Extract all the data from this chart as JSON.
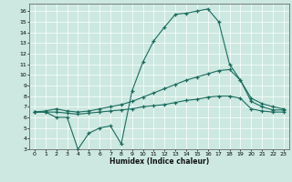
{
  "xlabel": "Humidex (Indice chaleur)",
  "background_color": "#cce8e0",
  "line_color": "#1a6b5e",
  "xlim": [
    -0.5,
    23.5
  ],
  "ylim": [
    3,
    16.7
  ],
  "xticks": [
    0,
    1,
    2,
    3,
    4,
    5,
    6,
    7,
    8,
    9,
    10,
    11,
    12,
    13,
    14,
    15,
    16,
    17,
    18,
    19,
    20,
    21,
    22,
    23
  ],
  "yticks": [
    3,
    4,
    5,
    6,
    7,
    8,
    9,
    10,
    11,
    12,
    13,
    14,
    15,
    16
  ],
  "series1_x": [
    0,
    1,
    2,
    3,
    4,
    5,
    6,
    7,
    8,
    9,
    10,
    11,
    12,
    13,
    14,
    15,
    16,
    17,
    18,
    19,
    20,
    21,
    22,
    23
  ],
  "series1_y": [
    6.5,
    6.5,
    6.0,
    6.0,
    3.0,
    4.5,
    5.0,
    5.2,
    3.5,
    8.5,
    11.2,
    13.2,
    14.5,
    15.7,
    15.8,
    16.0,
    16.2,
    15.0,
    11.0,
    9.5,
    7.5,
    7.0,
    6.7,
    6.7
  ],
  "series2_x": [
    0,
    1,
    2,
    3,
    4,
    5,
    6,
    7,
    8,
    9,
    10,
    11,
    12,
    13,
    14,
    15,
    16,
    17,
    18,
    19,
    20,
    21,
    22,
    23
  ],
  "series2_y": [
    6.5,
    6.6,
    6.8,
    6.6,
    6.5,
    6.6,
    6.8,
    7.0,
    7.2,
    7.5,
    7.9,
    8.3,
    8.7,
    9.1,
    9.5,
    9.8,
    10.1,
    10.4,
    10.5,
    9.5,
    7.8,
    7.3,
    7.0,
    6.8
  ],
  "series3_x": [
    0,
    1,
    2,
    3,
    4,
    5,
    6,
    7,
    8,
    9,
    10,
    11,
    12,
    13,
    14,
    15,
    16,
    17,
    18,
    19,
    20,
    21,
    22,
    23
  ],
  "series3_y": [
    6.5,
    6.5,
    6.5,
    6.4,
    6.3,
    6.4,
    6.5,
    6.6,
    6.7,
    6.8,
    7.0,
    7.1,
    7.2,
    7.4,
    7.6,
    7.7,
    7.9,
    8.0,
    8.0,
    7.8,
    6.8,
    6.6,
    6.5,
    6.5
  ],
  "grid_color": "white",
  "spine_color": "#555555"
}
